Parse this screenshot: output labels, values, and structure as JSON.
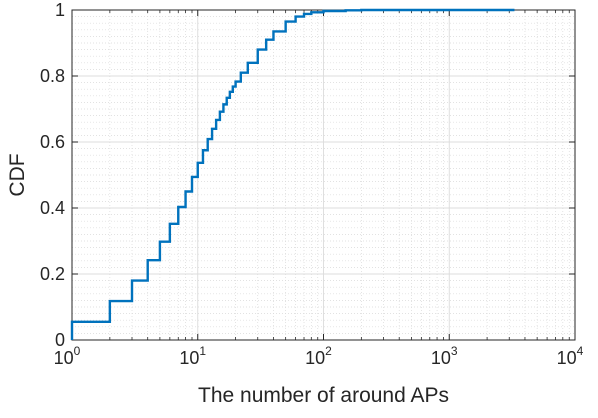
{
  "chart_data": {
    "type": "line",
    "title": "",
    "xlabel": "The number of around APs",
    "ylabel": "CDF",
    "x_scale": "log",
    "xlim": [
      1,
      10000
    ],
    "ylim": [
      0,
      1
    ],
    "grid": true,
    "minor_grid": true,
    "legend": "none",
    "x_tick_labels": [
      {
        "base": "10",
        "exp": "0"
      },
      {
        "base": "10",
        "exp": "1"
      },
      {
        "base": "10",
        "exp": "2"
      },
      {
        "base": "10",
        "exp": "3"
      },
      {
        "base": "10",
        "exp": "4"
      }
    ],
    "y_tick_labels": [
      "0",
      "0.2",
      "0.4",
      "0.6",
      "0.8",
      "1"
    ],
    "series": [
      {
        "color": "#0072BD",
        "step": true,
        "x": [
          1,
          2,
          3,
          4,
          5,
          6,
          7,
          8,
          9,
          10,
          11,
          12,
          13,
          14,
          15,
          16,
          17,
          18,
          19,
          20,
          22,
          25,
          30,
          35,
          40,
          50,
          60,
          70,
          80,
          100,
          150,
          200,
          300,
          500,
          1000,
          3300
        ],
        "y": [
          0.055,
          0.118,
          0.18,
          0.242,
          0.298,
          0.352,
          0.403,
          0.45,
          0.494,
          0.537,
          0.575,
          0.609,
          0.64,
          0.667,
          0.692,
          0.714,
          0.734,
          0.752,
          0.768,
          0.783,
          0.81,
          0.84,
          0.88,
          0.91,
          0.935,
          0.965,
          0.98,
          0.988,
          0.993,
          0.997,
          0.999,
          1.0,
          1.0,
          1.0,
          1.0,
          1.0
        ]
      }
    ]
  }
}
